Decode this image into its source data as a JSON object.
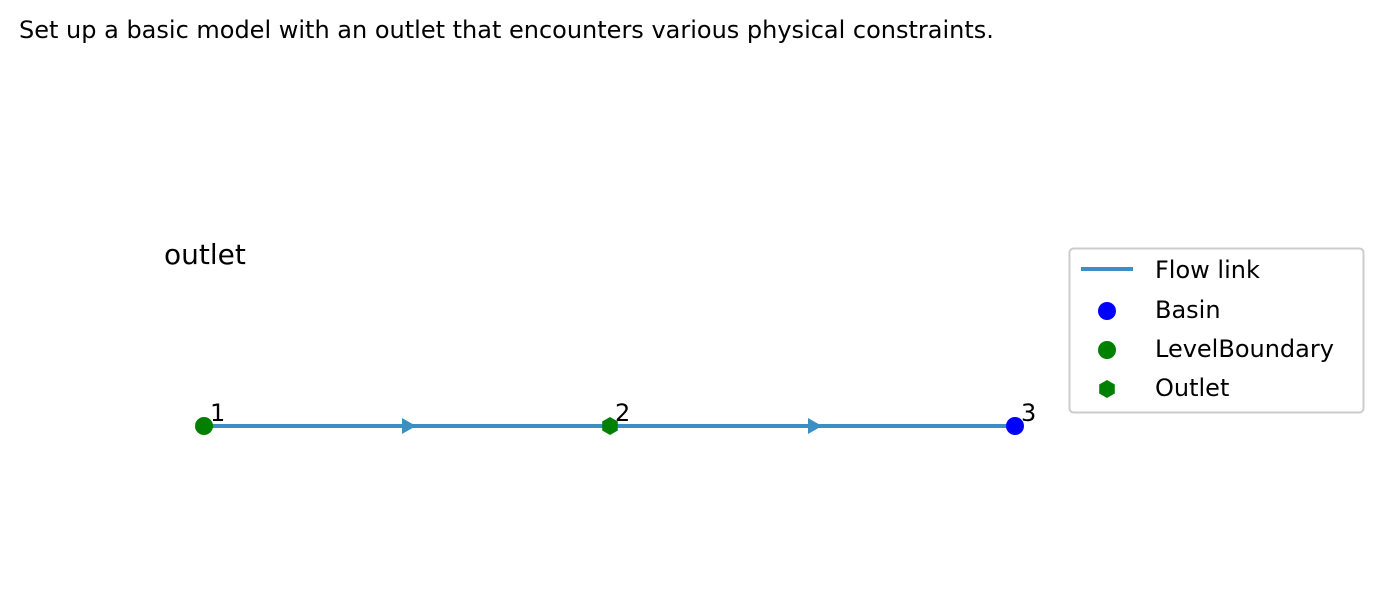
{
  "caption": "Set up a basic model with an outlet that encounters various physical constraints.",
  "diagram": {
    "title": "outlet",
    "nodes": [
      {
        "id": "1",
        "label": "1",
        "type": "LevelBoundary"
      },
      {
        "id": "2",
        "label": "2",
        "type": "Outlet"
      },
      {
        "id": "3",
        "label": "3",
        "type": "Basin"
      }
    ],
    "links": [
      {
        "from": "1",
        "to": "2",
        "type": "Flow link"
      },
      {
        "from": "2",
        "to": "3",
        "type": "Flow link"
      }
    ]
  },
  "legend": {
    "items": [
      {
        "label": "Flow link",
        "symbol": "line",
        "color": "#3a8fc5"
      },
      {
        "label": "Basin",
        "symbol": "circle",
        "color": "#0000ff"
      },
      {
        "label": "LevelBoundary",
        "symbol": "circle",
        "color": "#008000"
      },
      {
        "label": "Outlet",
        "symbol": "hexagon",
        "color": "#008000"
      }
    ]
  },
  "colors": {
    "flow_link": "#3a8fc5",
    "basin": "#0000ff",
    "level_boundary": "#008000",
    "outlet": "#008000",
    "legend_border": "#cccccc"
  }
}
